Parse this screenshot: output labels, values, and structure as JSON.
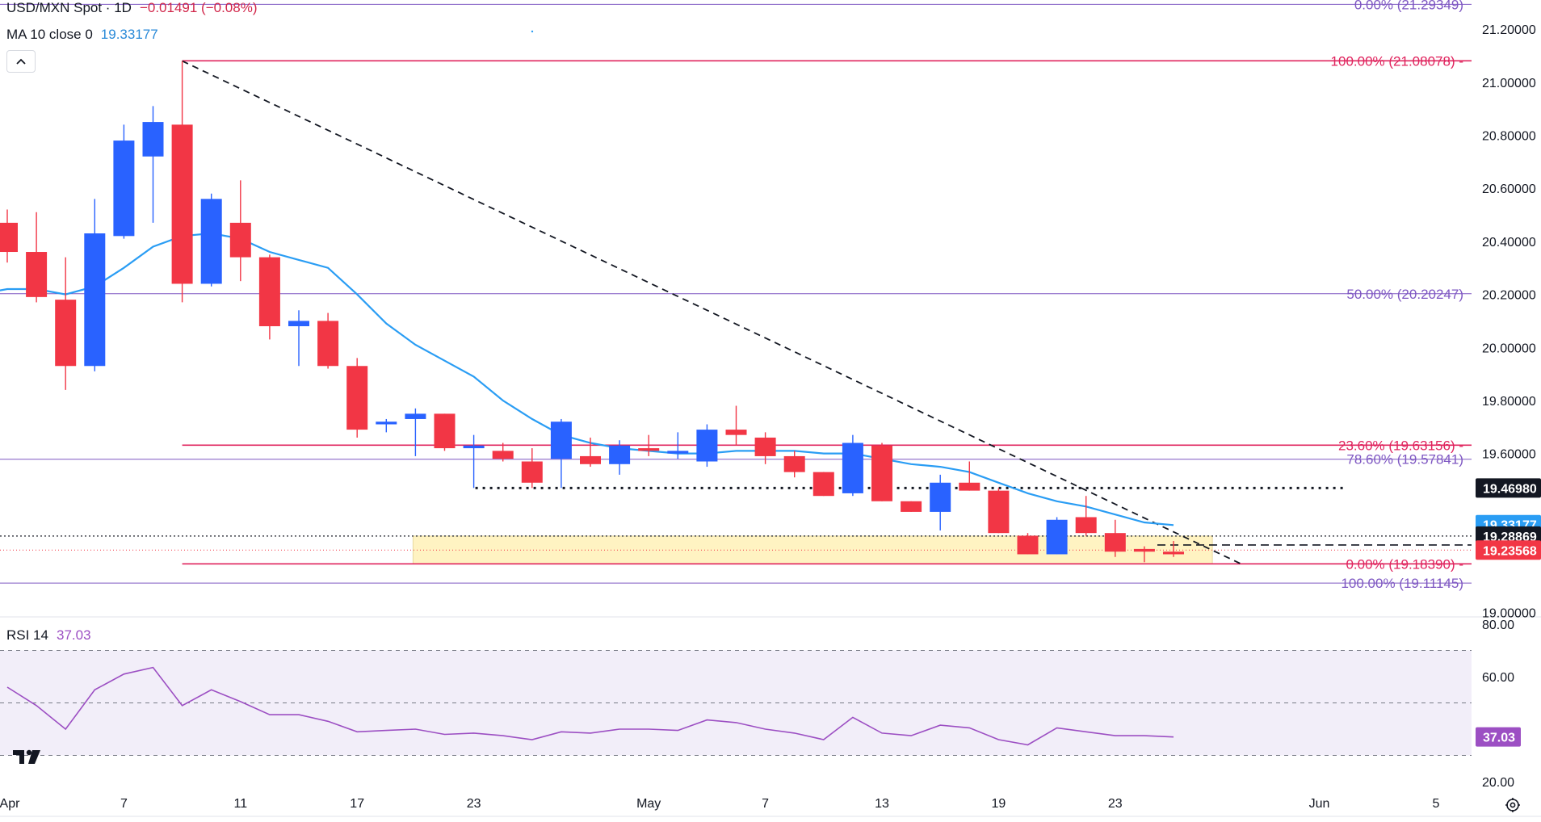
{
  "header": {
    "symbol": "USD/MXN Spot · 1D",
    "change": "−0.01491 (−0.08%)",
    "ma_label": "MA 10 close 0",
    "ma_value": "19.33177",
    "rsi_label": "RSI 14",
    "rsi_value": "37.03"
  },
  "colors": {
    "up": "#2962ff",
    "down": "#f23645",
    "ma": "#2a9df4",
    "rsi": "#9c4fc3",
    "fib_primary": "#e0245e",
    "fib_secondary": "#7e57c2",
    "zone": "#fff3c2"
  },
  "icons": {
    "collapse": "chevron-up-icon",
    "logo": "tradingview-logo-icon",
    "settings": "gear-icon"
  },
  "chart_data": [
    {
      "type": "candlestick",
      "title": "USD/MXN Spot · 1D",
      "y_ticks": [
        "21.20000",
        "21.00000",
        "20.80000",
        "20.60000",
        "20.40000",
        "20.20000",
        "20.00000",
        "19.80000",
        "19.60000",
        "19.00000"
      ],
      "ylim": [
        18.99,
        21.31
      ],
      "x_ticks": [
        {
          "label": "Apr",
          "slot": 0
        },
        {
          "label": "7",
          "slot": 4
        },
        {
          "label": "11",
          "slot": 8
        },
        {
          "label": "17",
          "slot": 12
        },
        {
          "label": "23",
          "slot": 16
        },
        {
          "label": "May",
          "slot": 22
        },
        {
          "label": "7",
          "slot": 26
        },
        {
          "label": "13",
          "slot": 30
        },
        {
          "label": "19",
          "slot": 34
        },
        {
          "label": "23",
          "slot": 38
        },
        {
          "label": "Jun",
          "slot": 45
        },
        {
          "label": "5",
          "slot": 49
        }
      ],
      "candles": [
        {
          "slot": 0,
          "o": 20.47,
          "h": 20.52,
          "l": 20.32,
          "c": 20.36
        },
        {
          "slot": 1,
          "o": 20.36,
          "h": 20.51,
          "l": 20.17,
          "c": 20.19
        },
        {
          "slot": 2,
          "o": 20.18,
          "h": 20.34,
          "l": 19.84,
          "c": 19.93
        },
        {
          "slot": 3,
          "o": 19.93,
          "h": 20.56,
          "l": 19.91,
          "c": 20.43
        },
        {
          "slot": 4,
          "o": 20.42,
          "h": 20.84,
          "l": 20.41,
          "c": 20.78
        },
        {
          "slot": 5,
          "o": 20.72,
          "h": 20.91,
          "l": 20.47,
          "c": 20.85
        },
        {
          "slot": 6,
          "o": 20.84,
          "h": 21.08,
          "l": 20.17,
          "c": 20.24
        },
        {
          "slot": 7,
          "o": 20.24,
          "h": 20.58,
          "l": 20.23,
          "c": 20.56
        },
        {
          "slot": 8,
          "o": 20.47,
          "h": 20.63,
          "l": 20.25,
          "c": 20.34
        },
        {
          "slot": 9,
          "o": 20.34,
          "h": 20.35,
          "l": 20.03,
          "c": 20.08
        },
        {
          "slot": 10,
          "o": 20.08,
          "h": 20.14,
          "l": 19.93,
          "c": 20.1
        },
        {
          "slot": 11,
          "o": 20.1,
          "h": 20.13,
          "l": 19.92,
          "c": 19.93
        },
        {
          "slot": 12,
          "o": 19.93,
          "h": 19.96,
          "l": 19.66,
          "c": 19.69
        },
        {
          "slot": 13,
          "o": 19.71,
          "h": 19.73,
          "l": 19.68,
          "c": 19.72
        },
        {
          "slot": 14,
          "o": 19.73,
          "h": 19.77,
          "l": 19.59,
          "c": 19.75
        },
        {
          "slot": 15,
          "o": 19.75,
          "h": 19.75,
          "l": 19.61,
          "c": 19.62
        },
        {
          "slot": 16,
          "o": 19.62,
          "h": 19.67,
          "l": 19.47,
          "c": 19.63
        },
        {
          "slot": 17,
          "o": 19.61,
          "h": 19.64,
          "l": 19.57,
          "c": 19.58
        },
        {
          "slot": 18,
          "o": 19.57,
          "h": 19.62,
          "l": 19.47,
          "c": 19.49
        },
        {
          "slot": 19,
          "o": 19.58,
          "h": 19.73,
          "l": 19.47,
          "c": 19.72
        },
        {
          "slot": 20,
          "o": 19.59,
          "h": 19.66,
          "l": 19.55,
          "c": 19.56
        },
        {
          "slot": 21,
          "o": 19.56,
          "h": 19.65,
          "l": 19.52,
          "c": 19.63
        },
        {
          "slot": 22,
          "o": 19.62,
          "h": 19.67,
          "l": 19.59,
          "c": 19.61
        },
        {
          "slot": 23,
          "o": 19.6,
          "h": 19.68,
          "l": 19.58,
          "c": 19.61
        },
        {
          "slot": 24,
          "o": 19.57,
          "h": 19.71,
          "l": 19.55,
          "c": 19.69
        },
        {
          "slot": 25,
          "o": 19.69,
          "h": 19.78,
          "l": 19.63,
          "c": 19.67
        },
        {
          "slot": 26,
          "o": 19.66,
          "h": 19.68,
          "l": 19.56,
          "c": 19.59
        },
        {
          "slot": 27,
          "o": 19.59,
          "h": 19.61,
          "l": 19.51,
          "c": 19.53
        },
        {
          "slot": 28,
          "o": 19.53,
          "h": 19.53,
          "l": 19.44,
          "c": 19.44
        },
        {
          "slot": 29,
          "o": 19.45,
          "h": 19.67,
          "l": 19.44,
          "c": 19.64
        },
        {
          "slot": 30,
          "o": 19.63,
          "h": 19.64,
          "l": 19.42,
          "c": 19.42
        },
        {
          "slot": 31,
          "o": 19.42,
          "h": 19.42,
          "l": 19.38,
          "c": 19.38
        },
        {
          "slot": 32,
          "o": 19.38,
          "h": 19.52,
          "l": 19.31,
          "c": 19.49
        },
        {
          "slot": 33,
          "o": 19.49,
          "h": 19.57,
          "l": 19.46,
          "c": 19.46
        },
        {
          "slot": 34,
          "o": 19.46,
          "h": 19.47,
          "l": 19.3,
          "c": 19.3
        },
        {
          "slot": 35,
          "o": 19.29,
          "h": 19.3,
          "l": 19.22,
          "c": 19.22
        },
        {
          "slot": 36,
          "o": 19.22,
          "h": 19.36,
          "l": 19.22,
          "c": 19.35
        },
        {
          "slot": 37,
          "o": 19.36,
          "h": 19.44,
          "l": 19.29,
          "c": 19.3
        },
        {
          "slot": 38,
          "o": 19.3,
          "h": 19.35,
          "l": 19.21,
          "c": 19.23
        },
        {
          "slot": 39,
          "o": 19.24,
          "h": 19.25,
          "l": 19.19,
          "c": 19.23
        },
        {
          "slot": 40,
          "o": 19.23,
          "h": 19.27,
          "l": 19.21,
          "c": 19.22
        }
      ],
      "ma10": [
        {
          "slot": -0.5,
          "v": 20.21
        },
        {
          "slot": 0,
          "v": 20.22
        },
        {
          "slot": 1,
          "v": 20.22
        },
        {
          "slot": 2,
          "v": 20.2
        },
        {
          "slot": 3,
          "v": 20.23
        },
        {
          "slot": 4,
          "v": 20.3
        },
        {
          "slot": 5,
          "v": 20.38
        },
        {
          "slot": 6,
          "v": 20.42
        },
        {
          "slot": 7,
          "v": 20.43
        },
        {
          "slot": 8,
          "v": 20.41
        },
        {
          "slot": 9,
          "v": 20.36
        },
        {
          "slot": 10,
          "v": 20.33
        },
        {
          "slot": 11,
          "v": 20.3
        },
        {
          "slot": 12,
          "v": 20.2
        },
        {
          "slot": 13,
          "v": 20.09
        },
        {
          "slot": 14,
          "v": 20.01
        },
        {
          "slot": 15,
          "v": 19.95
        },
        {
          "slot": 16,
          "v": 19.89
        },
        {
          "slot": 17,
          "v": 19.8
        },
        {
          "slot": 18,
          "v": 19.73
        },
        {
          "slot": 19,
          "v": 19.67
        },
        {
          "slot": 20,
          "v": 19.64
        },
        {
          "slot": 21,
          "v": 19.62
        },
        {
          "slot": 22,
          "v": 19.61
        },
        {
          "slot": 23,
          "v": 19.6
        },
        {
          "slot": 24,
          "v": 19.6
        },
        {
          "slot": 25,
          "v": 19.61
        },
        {
          "slot": 26,
          "v": 19.61
        },
        {
          "slot": 27,
          "v": 19.61
        },
        {
          "slot": 28,
          "v": 19.6
        },
        {
          "slot": 29,
          "v": 19.6
        },
        {
          "slot": 30,
          "v": 19.58
        },
        {
          "slot": 31,
          "v": 19.56
        },
        {
          "slot": 32,
          "v": 19.55
        },
        {
          "slot": 33,
          "v": 19.53
        },
        {
          "slot": 34,
          "v": 19.49
        },
        {
          "slot": 35,
          "v": 19.45
        },
        {
          "slot": 36,
          "v": 19.42
        },
        {
          "slot": 37,
          "v": 19.4
        },
        {
          "slot": 38,
          "v": 19.37
        },
        {
          "slot": 39,
          "v": 19.34
        },
        {
          "slot": 40,
          "v": 19.33
        }
      ],
      "fib_levels": [
        {
          "label": "100.00% (21.08078)",
          "value": 21.08078,
          "style": "primary",
          "from_slot": 6
        },
        {
          "label": "23.60% (19.63156)",
          "value": 19.63156,
          "style": "primary",
          "from_slot": 6
        },
        {
          "label": "0.00% (19.18390)",
          "value": 19.1839,
          "style": "primary",
          "from_slot": 6
        },
        {
          "label": "0.00% (21.29349)",
          "value": 21.29349,
          "style": "secondary",
          "from_slot": -1
        },
        {
          "label": "50.00% (20.20247)",
          "value": 20.20247,
          "style": "secondary",
          "from_slot": -1
        },
        {
          "label": "78.60% (19.57841)",
          "value": 19.57841,
          "style": "secondary",
          "from_slot": -1
        },
        {
          "label": "100.00% (19.11145)",
          "value": 19.11145,
          "style": "secondary",
          "from_slot": -1
        }
      ],
      "trendline": {
        "from": {
          "slot": 6,
          "v": 21.08
        },
        "to": {
          "slot": 42,
          "v": 19.18
        }
      },
      "support_line": {
        "value": 19.4698,
        "from_slot": 16,
        "to_slot": 46
      },
      "zone": {
        "from_slot": 14,
        "to_slot": 41,
        "top": 19.28869,
        "bottom": 19.1839
      },
      "price_badges": [
        {
          "value": 19.4698,
          "label": "19.46980",
          "color": "#131722"
        },
        {
          "value": 19.33177,
          "label": "19.33177",
          "color": "#2a9df4"
        },
        {
          "value": 19.28869,
          "label": "19.28869",
          "color": "#131722"
        },
        {
          "value": 19.23568,
          "label": "19.23568",
          "color": "#f23645"
        }
      ]
    },
    {
      "type": "line",
      "title": "RSI 14",
      "y_ticks": [
        "80.00",
        "60.00",
        "20.00"
      ],
      "ylim": [
        20,
        80
      ],
      "bands": [
        70,
        50,
        30
      ],
      "last_value_label": "37.03",
      "values": [
        {
          "slot": 0,
          "v": 56
        },
        {
          "slot": 1,
          "v": 49
        },
        {
          "slot": 2,
          "v": 40
        },
        {
          "slot": 3,
          "v": 55
        },
        {
          "slot": 4,
          "v": 61
        },
        {
          "slot": 5,
          "v": 63.5
        },
        {
          "slot": 6,
          "v": 49
        },
        {
          "slot": 7,
          "v": 55
        },
        {
          "slot": 8,
          "v": 50.5
        },
        {
          "slot": 9,
          "v": 45.5
        },
        {
          "slot": 10,
          "v": 45.5
        },
        {
          "slot": 11,
          "v": 43
        },
        {
          "slot": 12,
          "v": 39
        },
        {
          "slot": 13,
          "v": 39.5
        },
        {
          "slot": 14,
          "v": 40
        },
        {
          "slot": 15,
          "v": 38
        },
        {
          "slot": 16,
          "v": 38.5
        },
        {
          "slot": 17,
          "v": 37.5
        },
        {
          "slot": 18,
          "v": 36
        },
        {
          "slot": 19,
          "v": 39
        },
        {
          "slot": 20,
          "v": 38.5
        },
        {
          "slot": 21,
          "v": 40
        },
        {
          "slot": 22,
          "v": 40
        },
        {
          "slot": 23,
          "v": 39.5
        },
        {
          "slot": 24,
          "v": 43.5
        },
        {
          "slot": 25,
          "v": 42.5
        },
        {
          "slot": 26,
          "v": 40
        },
        {
          "slot": 27,
          "v": 38.5
        },
        {
          "slot": 28,
          "v": 36
        },
        {
          "slot": 29,
          "v": 44.5
        },
        {
          "slot": 30,
          "v": 38.5
        },
        {
          "slot": 31,
          "v": 37.5
        },
        {
          "slot": 32,
          "v": 41.5
        },
        {
          "slot": 33,
          "v": 40.5
        },
        {
          "slot": 34,
          "v": 36
        },
        {
          "slot": 35,
          "v": 34
        },
        {
          "slot": 36,
          "v": 40.5
        },
        {
          "slot": 37,
          "v": 39
        },
        {
          "slot": 38,
          "v": 37.5
        },
        {
          "slot": 39,
          "v": 37.5
        },
        {
          "slot": 40,
          "v": 37.03
        }
      ]
    }
  ]
}
